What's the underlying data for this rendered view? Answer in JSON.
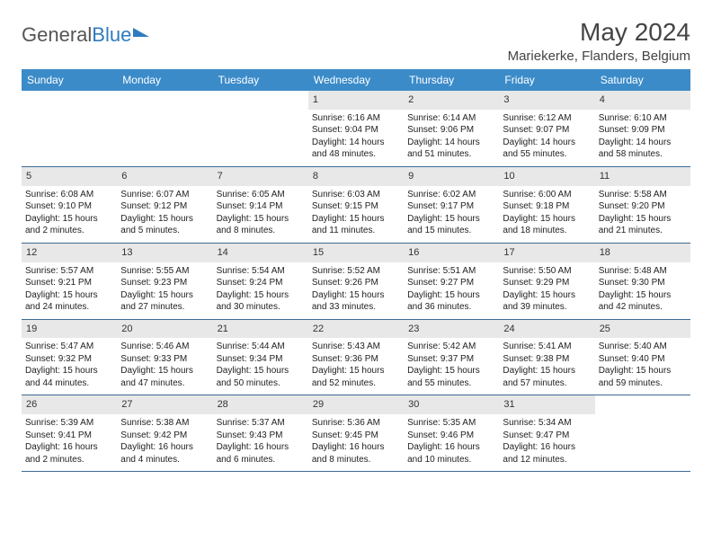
{
  "brand": {
    "part1": "General",
    "part2": "Blue"
  },
  "title": "May 2024",
  "location": "Mariekerke, Flanders, Belgium",
  "day_headers": [
    "Sunday",
    "Monday",
    "Tuesday",
    "Wednesday",
    "Thursday",
    "Friday",
    "Saturday"
  ],
  "header_bg": "#3b8bc9",
  "header_fg": "#ffffff",
  "daynum_bg": "#e8e8e8",
  "cell_border": "#3b6a94",
  "weeks": [
    [
      null,
      null,
      null,
      {
        "n": "1",
        "sr": "Sunrise: 6:16 AM",
        "ss": "Sunset: 9:04 PM",
        "d1": "Daylight: 14 hours",
        "d2": "and 48 minutes."
      },
      {
        "n": "2",
        "sr": "Sunrise: 6:14 AM",
        "ss": "Sunset: 9:06 PM",
        "d1": "Daylight: 14 hours",
        "d2": "and 51 minutes."
      },
      {
        "n": "3",
        "sr": "Sunrise: 6:12 AM",
        "ss": "Sunset: 9:07 PM",
        "d1": "Daylight: 14 hours",
        "d2": "and 55 minutes."
      },
      {
        "n": "4",
        "sr": "Sunrise: 6:10 AM",
        "ss": "Sunset: 9:09 PM",
        "d1": "Daylight: 14 hours",
        "d2": "and 58 minutes."
      }
    ],
    [
      {
        "n": "5",
        "sr": "Sunrise: 6:08 AM",
        "ss": "Sunset: 9:10 PM",
        "d1": "Daylight: 15 hours",
        "d2": "and 2 minutes."
      },
      {
        "n": "6",
        "sr": "Sunrise: 6:07 AM",
        "ss": "Sunset: 9:12 PM",
        "d1": "Daylight: 15 hours",
        "d2": "and 5 minutes."
      },
      {
        "n": "7",
        "sr": "Sunrise: 6:05 AM",
        "ss": "Sunset: 9:14 PM",
        "d1": "Daylight: 15 hours",
        "d2": "and 8 minutes."
      },
      {
        "n": "8",
        "sr": "Sunrise: 6:03 AM",
        "ss": "Sunset: 9:15 PM",
        "d1": "Daylight: 15 hours",
        "d2": "and 11 minutes."
      },
      {
        "n": "9",
        "sr": "Sunrise: 6:02 AM",
        "ss": "Sunset: 9:17 PM",
        "d1": "Daylight: 15 hours",
        "d2": "and 15 minutes."
      },
      {
        "n": "10",
        "sr": "Sunrise: 6:00 AM",
        "ss": "Sunset: 9:18 PM",
        "d1": "Daylight: 15 hours",
        "d2": "and 18 minutes."
      },
      {
        "n": "11",
        "sr": "Sunrise: 5:58 AM",
        "ss": "Sunset: 9:20 PM",
        "d1": "Daylight: 15 hours",
        "d2": "and 21 minutes."
      }
    ],
    [
      {
        "n": "12",
        "sr": "Sunrise: 5:57 AM",
        "ss": "Sunset: 9:21 PM",
        "d1": "Daylight: 15 hours",
        "d2": "and 24 minutes."
      },
      {
        "n": "13",
        "sr": "Sunrise: 5:55 AM",
        "ss": "Sunset: 9:23 PM",
        "d1": "Daylight: 15 hours",
        "d2": "and 27 minutes."
      },
      {
        "n": "14",
        "sr": "Sunrise: 5:54 AM",
        "ss": "Sunset: 9:24 PM",
        "d1": "Daylight: 15 hours",
        "d2": "and 30 minutes."
      },
      {
        "n": "15",
        "sr": "Sunrise: 5:52 AM",
        "ss": "Sunset: 9:26 PM",
        "d1": "Daylight: 15 hours",
        "d2": "and 33 minutes."
      },
      {
        "n": "16",
        "sr": "Sunrise: 5:51 AM",
        "ss": "Sunset: 9:27 PM",
        "d1": "Daylight: 15 hours",
        "d2": "and 36 minutes."
      },
      {
        "n": "17",
        "sr": "Sunrise: 5:50 AM",
        "ss": "Sunset: 9:29 PM",
        "d1": "Daylight: 15 hours",
        "d2": "and 39 minutes."
      },
      {
        "n": "18",
        "sr": "Sunrise: 5:48 AM",
        "ss": "Sunset: 9:30 PM",
        "d1": "Daylight: 15 hours",
        "d2": "and 42 minutes."
      }
    ],
    [
      {
        "n": "19",
        "sr": "Sunrise: 5:47 AM",
        "ss": "Sunset: 9:32 PM",
        "d1": "Daylight: 15 hours",
        "d2": "and 44 minutes."
      },
      {
        "n": "20",
        "sr": "Sunrise: 5:46 AM",
        "ss": "Sunset: 9:33 PM",
        "d1": "Daylight: 15 hours",
        "d2": "and 47 minutes."
      },
      {
        "n": "21",
        "sr": "Sunrise: 5:44 AM",
        "ss": "Sunset: 9:34 PM",
        "d1": "Daylight: 15 hours",
        "d2": "and 50 minutes."
      },
      {
        "n": "22",
        "sr": "Sunrise: 5:43 AM",
        "ss": "Sunset: 9:36 PM",
        "d1": "Daylight: 15 hours",
        "d2": "and 52 minutes."
      },
      {
        "n": "23",
        "sr": "Sunrise: 5:42 AM",
        "ss": "Sunset: 9:37 PM",
        "d1": "Daylight: 15 hours",
        "d2": "and 55 minutes."
      },
      {
        "n": "24",
        "sr": "Sunrise: 5:41 AM",
        "ss": "Sunset: 9:38 PM",
        "d1": "Daylight: 15 hours",
        "d2": "and 57 minutes."
      },
      {
        "n": "25",
        "sr": "Sunrise: 5:40 AM",
        "ss": "Sunset: 9:40 PM",
        "d1": "Daylight: 15 hours",
        "d2": "and 59 minutes."
      }
    ],
    [
      {
        "n": "26",
        "sr": "Sunrise: 5:39 AM",
        "ss": "Sunset: 9:41 PM",
        "d1": "Daylight: 16 hours",
        "d2": "and 2 minutes."
      },
      {
        "n": "27",
        "sr": "Sunrise: 5:38 AM",
        "ss": "Sunset: 9:42 PM",
        "d1": "Daylight: 16 hours",
        "d2": "and 4 minutes."
      },
      {
        "n": "28",
        "sr": "Sunrise: 5:37 AM",
        "ss": "Sunset: 9:43 PM",
        "d1": "Daylight: 16 hours",
        "d2": "and 6 minutes."
      },
      {
        "n": "29",
        "sr": "Sunrise: 5:36 AM",
        "ss": "Sunset: 9:45 PM",
        "d1": "Daylight: 16 hours",
        "d2": "and 8 minutes."
      },
      {
        "n": "30",
        "sr": "Sunrise: 5:35 AM",
        "ss": "Sunset: 9:46 PM",
        "d1": "Daylight: 16 hours",
        "d2": "and 10 minutes."
      },
      {
        "n": "31",
        "sr": "Sunrise: 5:34 AM",
        "ss": "Sunset: 9:47 PM",
        "d1": "Daylight: 16 hours",
        "d2": "and 12 minutes."
      },
      null
    ]
  ]
}
